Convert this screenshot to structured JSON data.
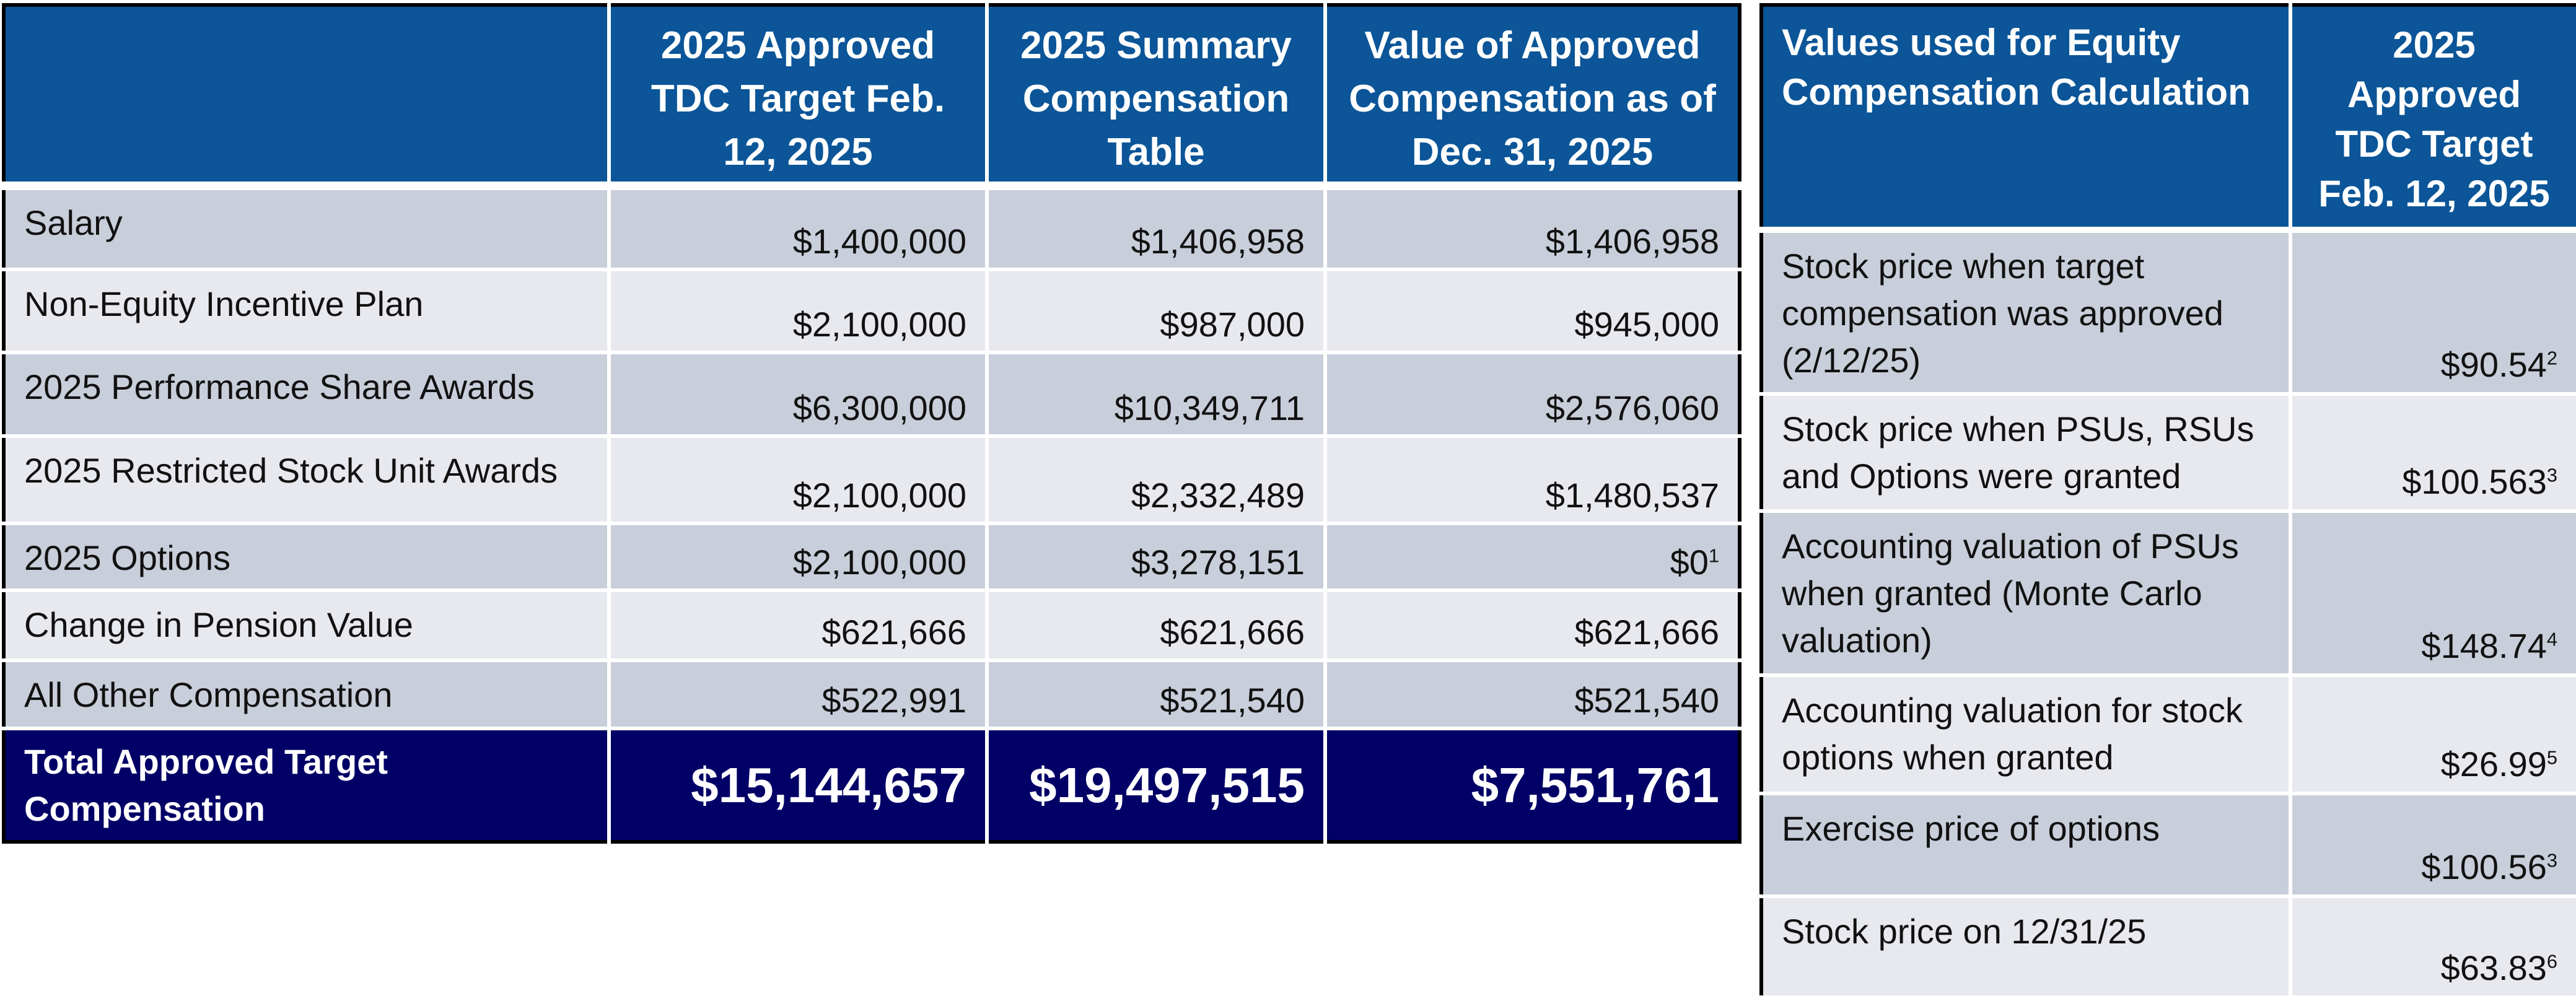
{
  "compensation_table": {
    "headers": [
      "",
      "2025  Approved TDC Target Feb. 12, 2025",
      "2025 Summary Compensation Table",
      "Value of Approved Compensation as of Dec. 31, 2025"
    ],
    "rows": [
      {
        "label": "Salary",
        "approved": "$1,400,000",
        "summary": "$1,406,958",
        "value": "$1,406,958",
        "value_note": ""
      },
      {
        "label": "Non-Equity Incentive Plan",
        "approved": "$2,100,000",
        "summary": "$987,000",
        "value": "$945,000",
        "value_note": ""
      },
      {
        "label": "2025 Performance Share Awards",
        "approved": "$6,300,000",
        "summary": "$10,349,711",
        "value": "$2,576,060",
        "value_note": ""
      },
      {
        "label": "2025 Restricted Stock Unit Awards",
        "approved": "$2,100,000",
        "summary": "$2,332,489",
        "value": "$1,480,537",
        "value_note": ""
      },
      {
        "label": "2025 Options",
        "approved": "$2,100,000",
        "summary": "$3,278,151",
        "value": "$0",
        "value_note": "1"
      },
      {
        "label": "Change in Pension Value",
        "approved": "$621,666",
        "summary": "$621,666",
        "value": "$621,666",
        "value_note": ""
      },
      {
        "label": "All Other Compensation",
        "approved": "$522,991",
        "summary": "$521,540",
        "value": "$521,540",
        "value_note": ""
      }
    ],
    "total": {
      "label": "Total Approved Target Compensation",
      "approved": "$15,144,657",
      "summary": "$19,497,515",
      "value": "$7,551,761"
    }
  },
  "equity_table": {
    "headers": [
      "Values used for Equity Compensation Calculation",
      "2025 Approved TDC Target Feb. 12, 2025"
    ],
    "rows": [
      {
        "label": "Stock price when target compensation was approved (2/12/25)",
        "value": "$90.54",
        "note": "2"
      },
      {
        "label": "Stock price when PSUs, RSUs and Options were granted",
        "value": "$100.563",
        "note": "3"
      },
      {
        "label": "Accounting valuation of PSUs when granted (Monte Carlo valuation)",
        "value": "$148.74",
        "note": "4"
      },
      {
        "label": "Accounting valuation for stock options when granted",
        "value": "$26.99",
        "note": "5"
      },
      {
        "label": "Exercise price of options",
        "value": "$100.56",
        "note": "3"
      },
      {
        "label": "Stock price on 12/31/25",
        "value": "$63.83",
        "note": "6"
      }
    ]
  },
  "colors": {
    "header_blue": "#0b5598",
    "total_navy": "#010066",
    "row_dark": "#c8ceda",
    "row_light": "#e8e9ef"
  }
}
